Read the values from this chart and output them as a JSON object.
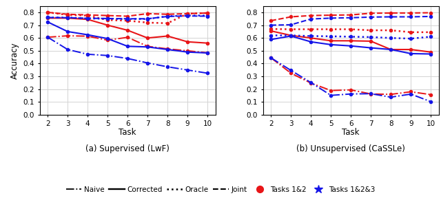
{
  "tasks": [
    2,
    3,
    4,
    5,
    6,
    7,
    8,
    9,
    10
  ],
  "lwf": {
    "naive_red": [
      0.606,
      0.617,
      0.614,
      0.583,
      0.605,
      0.535,
      0.515,
      0.5,
      0.484
    ],
    "naive_blue": [
      0.606,
      0.51,
      0.473,
      0.463,
      0.44,
      0.405,
      0.375,
      0.35,
      0.325
    ],
    "corrected_red": [
      0.755,
      0.755,
      0.745,
      0.7,
      0.66,
      0.6,
      0.615,
      0.57,
      0.56
    ],
    "corrected_blue": [
      0.725,
      0.65,
      0.625,
      0.595,
      0.535,
      0.53,
      0.51,
      0.49,
      0.483
    ],
    "oracle_red": [
      0.8,
      0.78,
      0.775,
      0.74,
      0.735,
      0.72,
      0.715,
      0.79,
      0.795
    ],
    "oracle_blue": [
      0.76,
      0.76,
      0.752,
      0.75,
      0.748,
      0.748,
      0.77,
      0.775,
      0.775
    ],
    "joint_red": [
      0.8,
      0.785,
      0.78,
      0.775,
      0.77,
      0.79,
      0.785,
      0.79,
      0.795
    ],
    "joint_blue": [
      0.76,
      0.758,
      0.754,
      0.752,
      0.75,
      0.75,
      0.768,
      0.772,
      0.77
    ]
  },
  "cassle": {
    "naive_red": [
      0.445,
      0.325,
      0.248,
      0.19,
      0.195,
      0.163,
      0.16,
      0.18,
      0.158
    ],
    "naive_blue": [
      0.445,
      0.347,
      0.252,
      0.152,
      0.163,
      0.165,
      0.138,
      0.162,
      0.103
    ],
    "corrected_red": [
      0.655,
      0.62,
      0.6,
      0.578,
      0.578,
      0.575,
      0.51,
      0.51,
      0.49
    ],
    "corrected_blue": [
      0.588,
      0.615,
      0.57,
      0.548,
      0.538,
      0.523,
      0.51,
      0.478,
      0.475
    ],
    "oracle_red": [
      0.67,
      0.668,
      0.668,
      0.668,
      0.668,
      0.66,
      0.66,
      0.645,
      0.645
    ],
    "oracle_blue": [
      0.62,
      0.62,
      0.615,
      0.613,
      0.61,
      0.607,
      0.6,
      0.595,
      0.61
    ],
    "joint_red": [
      0.735,
      0.765,
      0.775,
      0.778,
      0.78,
      0.793,
      0.795,
      0.795,
      0.797
    ],
    "joint_blue": [
      0.7,
      0.703,
      0.748,
      0.755,
      0.758,
      0.763,
      0.765,
      0.765,
      0.768
    ]
  },
  "colors": {
    "red": "#e81518",
    "blue": "#1515e8"
  },
  "subtitle_a": "(a) Supervised (LwF)",
  "subtitle_b": "(b) Unsupervised (CaSSLe)",
  "xlabel": "Task",
  "ylabel": "Accuracy",
  "ylim": [
    0.0,
    0.85
  ],
  "yticks": [
    0.0,
    0.1,
    0.2,
    0.3,
    0.4,
    0.5,
    0.6,
    0.7,
    0.8
  ]
}
